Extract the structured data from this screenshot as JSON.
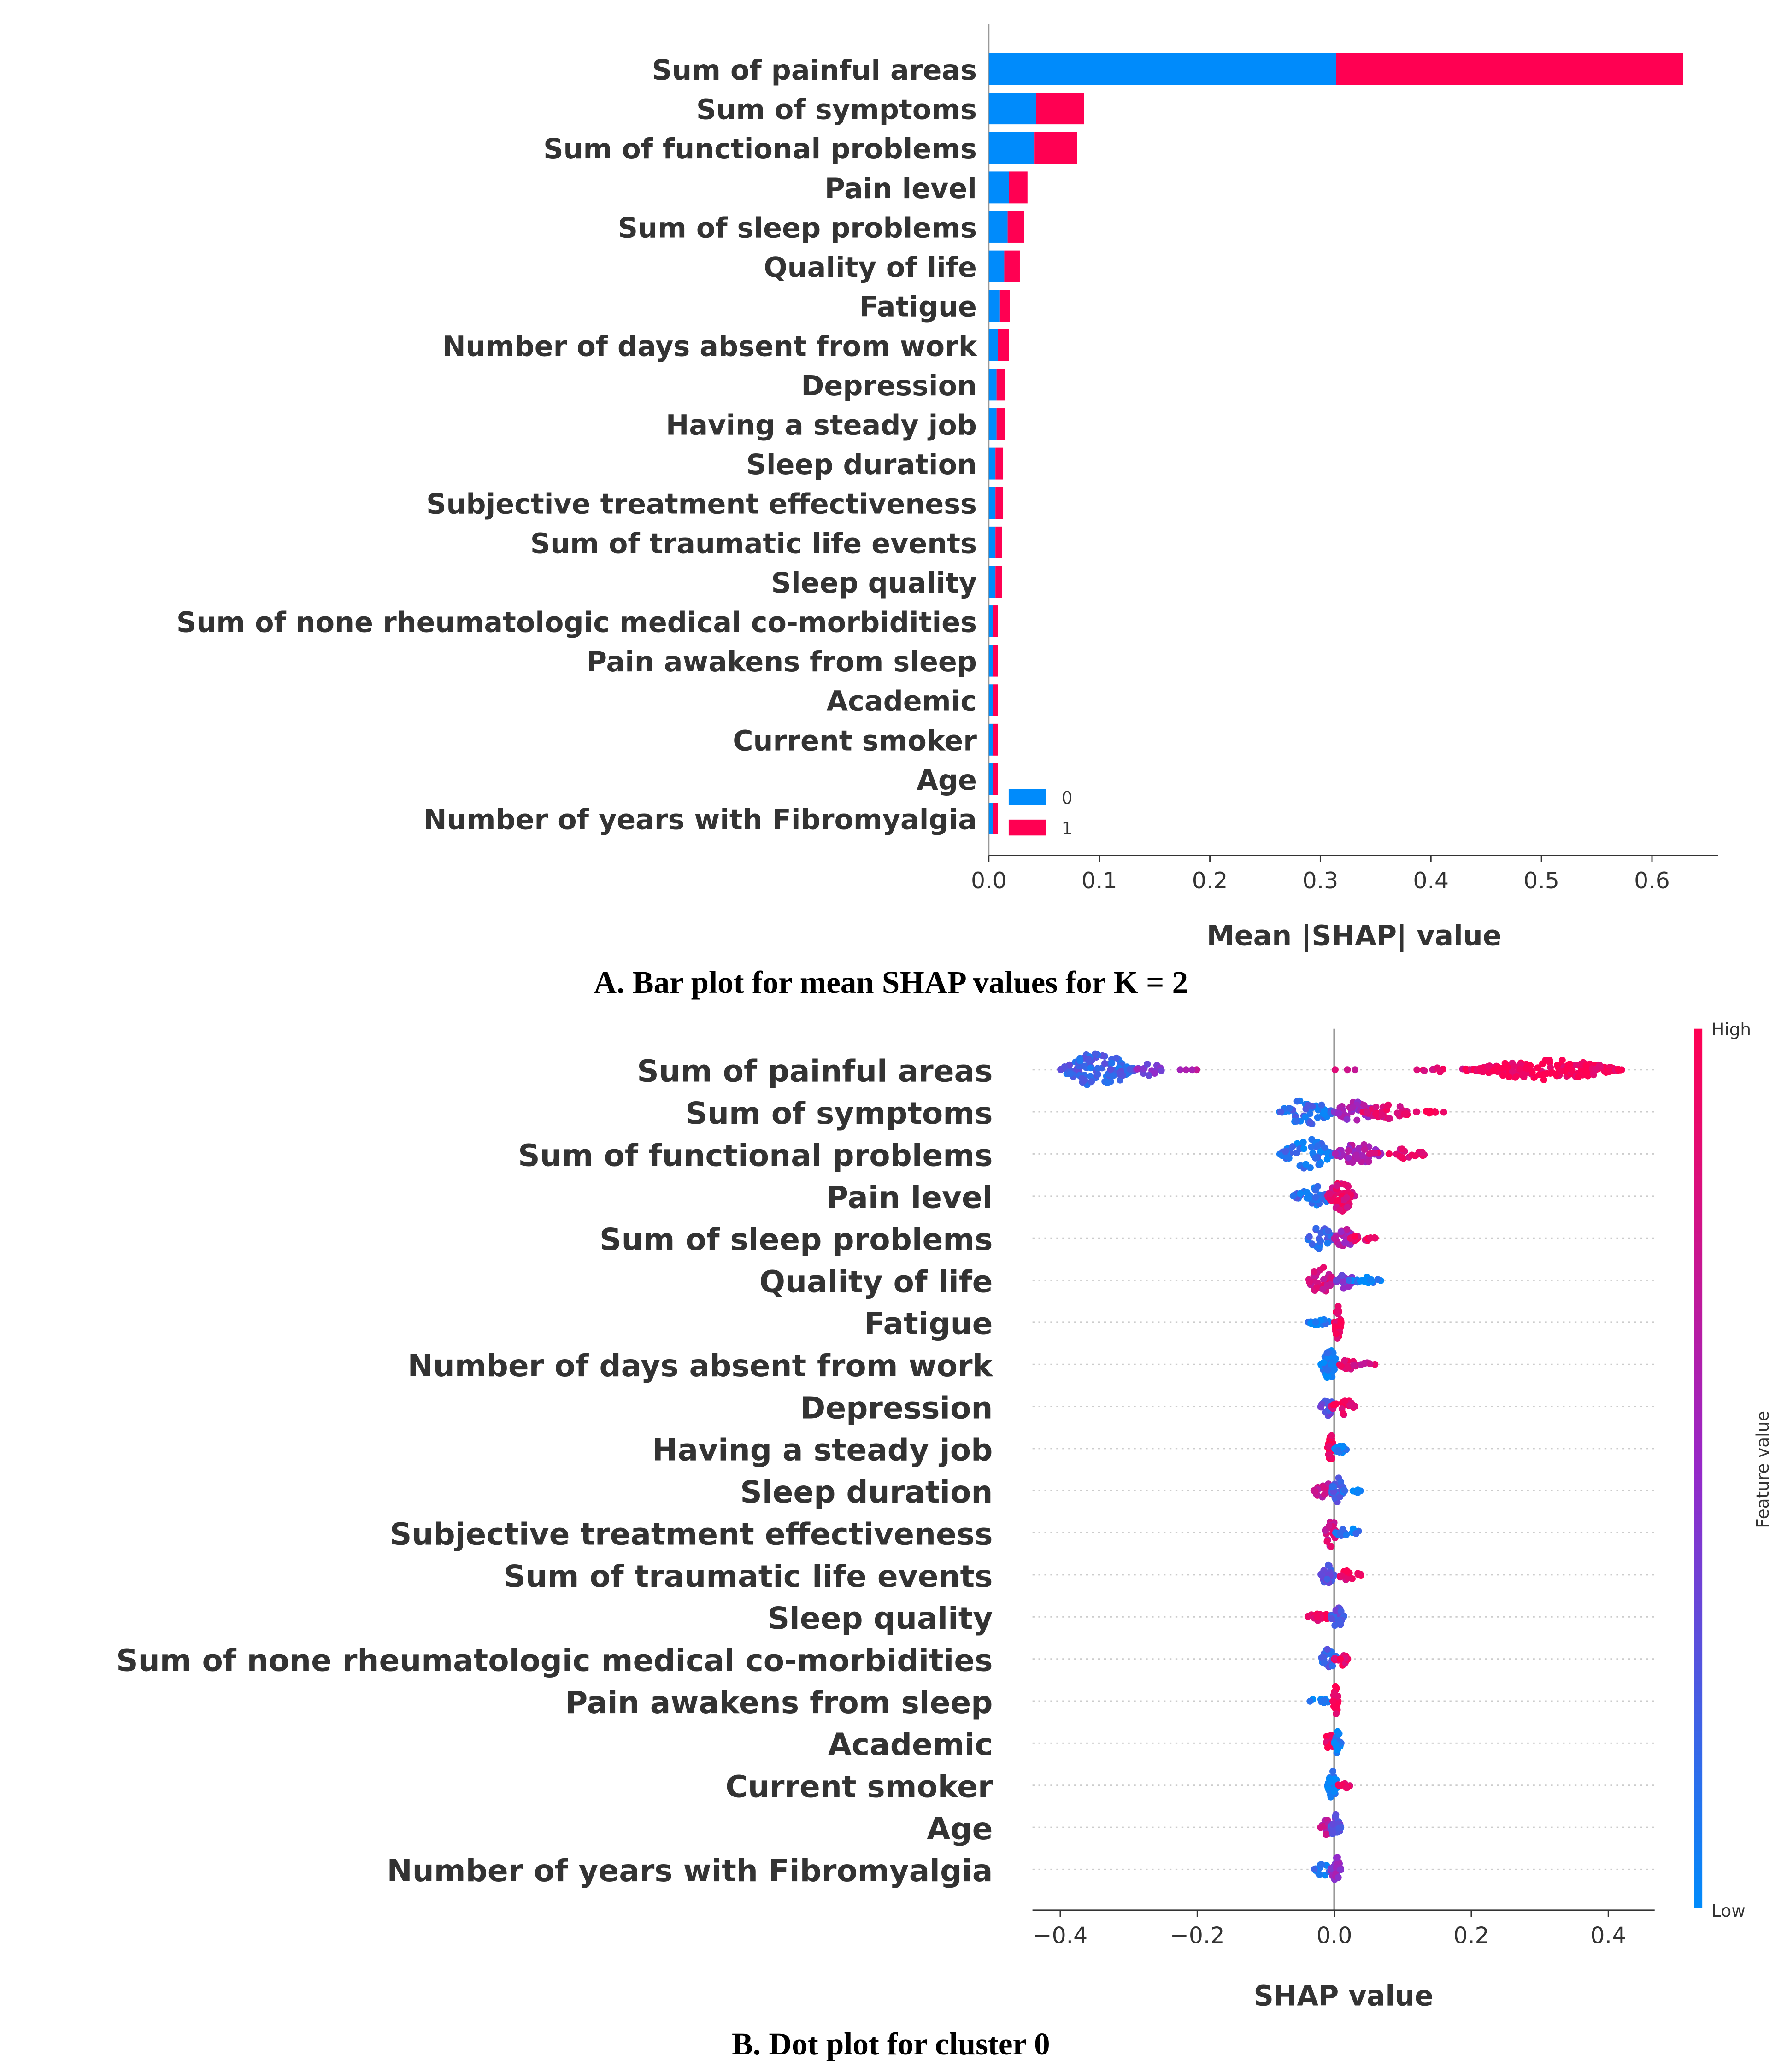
{
  "chart_data": [
    {
      "type": "bar",
      "stacked": true,
      "title": "",
      "xlabel": "Mean |SHAP| value",
      "caption": "A. Bar plot for mean SHAP values for K = 2",
      "xlim": [
        0,
        0.66
      ],
      "xticks": [
        "0.0",
        "0.1",
        "0.2",
        "0.3",
        "0.4",
        "0.5",
        "0.6"
      ],
      "legend": {
        "placement": "bottom-left",
        "entries": [
          "0",
          "1"
        ]
      },
      "colors": {
        "0": "#008bfb",
        "1": "#ff0052"
      },
      "categories": [
        "Sum of painful areas",
        "Sum of symptoms",
        "Sum of functional problems",
        "Pain level",
        "Sum of sleep problems",
        "Quality of life ",
        "Fatigue ",
        "Number of days absent from work",
        "Depression",
        "Having a steady job",
        "Sleep duration",
        "Subjective treatment effectiveness",
        "Sum of traumatic life events",
        "Sleep quality ",
        "Sum of none rheumatologic medical co-morbidities",
        "Pain awakens from sleep",
        "Academic",
        "Current smoker",
        "Age",
        "Number of years with Fibromyalgia"
      ],
      "series": [
        {
          "name": "0",
          "values": [
            0.314,
            0.043,
            0.041,
            0.018,
            0.017,
            0.014,
            0.01,
            0.008,
            0.007,
            0.007,
            0.006,
            0.006,
            0.006,
            0.006,
            0.004,
            0.004,
            0.004,
            0.004,
            0.004,
            0.004
          ]
        },
        {
          "name": "1",
          "values": [
            0.314,
            0.043,
            0.039,
            0.017,
            0.015,
            0.014,
            0.009,
            0.01,
            0.008,
            0.008,
            0.007,
            0.007,
            0.006,
            0.006,
            0.004,
            0.004,
            0.004,
            0.004,
            0.004,
            0.004
          ]
        }
      ]
    },
    {
      "type": "scatter",
      "subtype": "beeswarm",
      "xlabel": "SHAP value",
      "caption": "B. Dot plot for cluster 0",
      "xlim": [
        -0.44,
        0.47
      ],
      "xticks": [
        "−0.4",
        "−0.2",
        "0.0",
        "0.2",
        "0.4"
      ],
      "colorbar": {
        "label": "Feature value",
        "high": "High",
        "low": "Low",
        "low_color": "#008bfb",
        "high_color": "#ff0052"
      },
      "categories": [
        "Sum of painful areas",
        "Sum of symptoms",
        "Sum of functional problems",
        "Pain level",
        "Sum of sleep problems",
        "Quality of life ",
        "Fatigue ",
        "Number of days absent from work",
        "Depression",
        "Having a steady job",
        "Sleep duration",
        "Subjective treatment effectiveness",
        "Sum of traumatic life events",
        "Sleep quality ",
        "Sum of none rheumatologic medical co-morbidities",
        "Pain awakens from sleep",
        "Academic",
        "Current smoker",
        "Age",
        "Number of years with Fibromyalgia"
      ],
      "segments_note": "per feature: [shap_from, shap_to, feature_value_0to1, n_points, density]",
      "segments": [
        [
          [
            -0.4,
            -0.29,
            0.2,
            120,
            1
          ],
          [
            -0.29,
            -0.25,
            0.45,
            15,
            0.4
          ],
          [
            -0.24,
            -0.19,
            0.6,
            4,
            0
          ],
          [
            0.0,
            0.04,
            0.75,
            3,
            0
          ],
          [
            0.12,
            0.2,
            0.88,
            12,
            0.2
          ],
          [
            0.2,
            0.42,
            0.97,
            180,
            0.6
          ]
        ],
        [
          [
            -0.08,
            0.0,
            0.15,
            60,
            0.8
          ],
          [
            0.0,
            0.06,
            0.55,
            50,
            0.6
          ],
          [
            0.04,
            0.12,
            0.85,
            40,
            0.4
          ],
          [
            0.12,
            0.17,
            0.95,
            8,
            0.1
          ]
        ],
        [
          [
            -0.08,
            0.0,
            0.12,
            60,
            0.9
          ],
          [
            0.0,
            0.07,
            0.6,
            50,
            0.6
          ],
          [
            0.05,
            0.14,
            0.85,
            25,
            0.3
          ]
        ],
        [
          [
            -0.06,
            0.0,
            0.15,
            40,
            0.6
          ],
          [
            -0.01,
            0.03,
            0.85,
            60,
            0.9
          ]
        ],
        [
          [
            -0.04,
            0.0,
            0.2,
            30,
            0.7
          ],
          [
            0.0,
            0.03,
            0.6,
            30,
            0.6
          ],
          [
            0.02,
            0.06,
            0.9,
            15,
            0.3
          ]
        ],
        [
          [
            -0.04,
            0.0,
            0.8,
            35,
            0.8
          ],
          [
            0.0,
            0.03,
            0.4,
            25,
            0.5
          ],
          [
            0.02,
            0.07,
            0.05,
            15,
            0.2
          ]
        ],
        [
          [
            -0.04,
            -0.005,
            0.05,
            15,
            0.2
          ],
          [
            0.0,
            0.01,
            0.95,
            30,
            1
          ]
        ],
        [
          [
            -0.02,
            0.005,
            0.05,
            40,
            0.9
          ],
          [
            0.005,
            0.035,
            0.85,
            15,
            0.3
          ],
          [
            0.035,
            0.06,
            0.8,
            6,
            0.1
          ]
        ],
        [
          [
            -0.02,
            0.0,
            0.3,
            25,
            0.6
          ],
          [
            -0.005,
            0.03,
            0.9,
            25,
            0.5
          ]
        ],
        [
          [
            -0.01,
            0.0,
            0.95,
            30,
            0.8
          ],
          [
            0.0,
            0.02,
            0.05,
            15,
            0.3
          ]
        ],
        [
          [
            -0.03,
            0.0,
            0.7,
            25,
            0.6
          ],
          [
            -0.005,
            0.015,
            0.2,
            30,
            0.8
          ],
          [
            0.01,
            0.04,
            0.05,
            10,
            0.2
          ]
        ],
        [
          [
            -0.015,
            0.005,
            0.8,
            30,
            0.8
          ],
          [
            0.0,
            0.04,
            0.1,
            15,
            0.3
          ]
        ],
        [
          [
            -0.02,
            0.0,
            0.3,
            25,
            0.6
          ],
          [
            0.0,
            0.04,
            0.9,
            15,
            0.3
          ]
        ],
        [
          [
            -0.04,
            -0.005,
            0.95,
            15,
            0.25
          ],
          [
            -0.005,
            0.015,
            0.3,
            30,
            0.8
          ]
        ],
        [
          [
            -0.02,
            0.005,
            0.2,
            25,
            0.6
          ],
          [
            0.0,
            0.02,
            0.9,
            15,
            0.4
          ]
        ],
        [
          [
            -0.04,
            -0.005,
            0.05,
            12,
            0.15
          ],
          [
            -0.002,
            0.006,
            0.95,
            30,
            1
          ]
        ],
        [
          [
            -0.015,
            0.0,
            0.95,
            15,
            0.6
          ],
          [
            0.0,
            0.01,
            0.05,
            20,
            0.8
          ]
        ],
        [
          [
            -0.01,
            0.005,
            0.05,
            30,
            0.9
          ],
          [
            0.005,
            0.025,
            0.95,
            10,
            0.2
          ]
        ],
        [
          [
            -0.02,
            0.0,
            0.7,
            15,
            0.5
          ],
          [
            -0.005,
            0.01,
            0.3,
            25,
            0.8
          ]
        ],
        [
          [
            -0.03,
            0.0,
            0.1,
            15,
            0.4
          ],
          [
            -0.005,
            0.01,
            0.5,
            25,
            0.8
          ]
        ]
      ]
    }
  ]
}
